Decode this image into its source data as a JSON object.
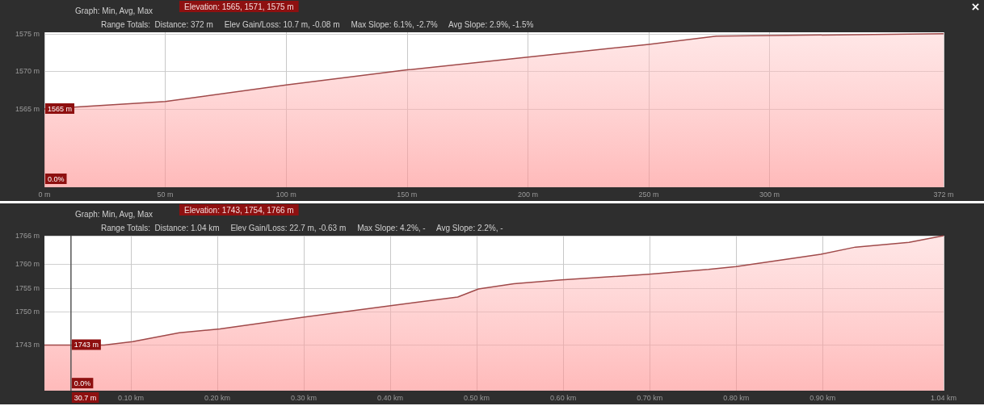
{
  "chart_data": [
    {
      "type": "area",
      "title": "Graph: Min, Avg, Max",
      "subtitle": "Elevation: 1565, 1571, 1575 m",
      "annotations": [
        "Range Totals:  Distance: 372 m     Elev Gain/Loss: 10.7 m, -0.08 m     Max Slope: 6.1%, -2.7%     Avg Slope: 2.9%, -1.5%",
        {
          "text": "1565 m",
          "y": 1565
        },
        "0.0%"
      ],
      "x": [
        0,
        50,
        100,
        150,
        200,
        250,
        278,
        372
      ],
      "series": [
        {
          "color": "#a04a4a",
          "values": [
            1565,
            1566,
            1568.2,
            1570.2,
            1571.9,
            1573.6,
            1574.7,
            1575
          ]
        }
      ],
      "xlim": [
        0,
        372
      ],
      "xticks": [
        {
          "value": 0,
          "label": "0 m"
        },
        {
          "value": 50,
          "label": "50 m"
        },
        {
          "value": 100,
          "label": "100 m"
        },
        {
          "value": 150,
          "label": "150 m"
        },
        {
          "value": 200,
          "label": "200 m"
        },
        {
          "value": 250,
          "label": "250 m"
        },
        {
          "value": 300,
          "label": "300 m"
        },
        {
          "value": 372,
          "label": "372 m"
        }
      ],
      "ylim": [
        1554.6,
        1575.2
      ],
      "yticks": [
        {
          "value": 1565,
          "label": "1565 m"
        },
        {
          "value": 1570,
          "label": "1570 m"
        },
        {
          "value": 1575,
          "label": "1575 m"
        }
      ],
      "grid": true,
      "marker": "none"
    },
    {
      "type": "area",
      "title": "Graph: Min, Avg, Max",
      "subtitle": "Elevation: 1743, 1754, 1766 m",
      "annotations": [
        "Range Totals:  Distance: 1.04 km     Elev Gain/Loss: 22.7 m, -0.63 m     Max Slope: 4.2%, -     Avg Slope: 2.2%, -",
        {
          "text": "1743 m",
          "x": 0.0307,
          "y": 1743
        },
        {
          "text": "0.0%",
          "x": 0.0307,
          "y": 1734.9
        }
      ],
      "x": [
        0,
        0.069,
        0.102,
        0.156,
        0.203,
        0.301,
        0.402,
        0.478,
        0.502,
        0.543,
        0.598,
        0.699,
        0.768,
        0.8,
        0.898,
        0.938,
        1.0,
        1.04
      ],
      "series": [
        {
          "color": "#a04a4a",
          "values": [
            1743,
            1743,
            1743.7,
            1745.6,
            1746.4,
            1748.9,
            1751.3,
            1753.1,
            1754.8,
            1755.9,
            1756.7,
            1757.9,
            1758.9,
            1759.5,
            1762.1,
            1763.6,
            1764.6,
            1766
          ]
        }
      ],
      "xlim": [
        0,
        1.04
      ],
      "xticks": [
        {
          "value": 0.1,
          "label": "0.10 km"
        },
        {
          "value": 0.2,
          "label": "0.20 km"
        },
        {
          "value": 0.3,
          "label": "0.30 km"
        },
        {
          "value": 0.4,
          "label": "0.40 km"
        },
        {
          "value": 0.5,
          "label": "0.50 km"
        },
        {
          "value": 0.6,
          "label": "0.60 km"
        },
        {
          "value": 0.7,
          "label": "0.70 km"
        },
        {
          "value": 0.8,
          "label": "0.80 km"
        },
        {
          "value": 0.9,
          "label": "0.90 km"
        },
        {
          "value": 1.04,
          "label": "1.04 km"
        }
      ],
      "ylim": [
        1733.4,
        1766
      ],
      "yticks": [
        {
          "value": 1743,
          "label": "1743 m"
        },
        {
          "value": 1750,
          "label": "1750 m"
        },
        {
          "value": 1755,
          "label": "1755 m"
        },
        {
          "value": 1760,
          "label": "1760 m"
        },
        {
          "value": 1766,
          "label": "1766 m"
        }
      ],
      "ref_lines": [
        {
          "axis": "x",
          "value": 0.0307,
          "label": "30.7 m"
        }
      ],
      "grid": true,
      "marker": "none"
    }
  ]
}
